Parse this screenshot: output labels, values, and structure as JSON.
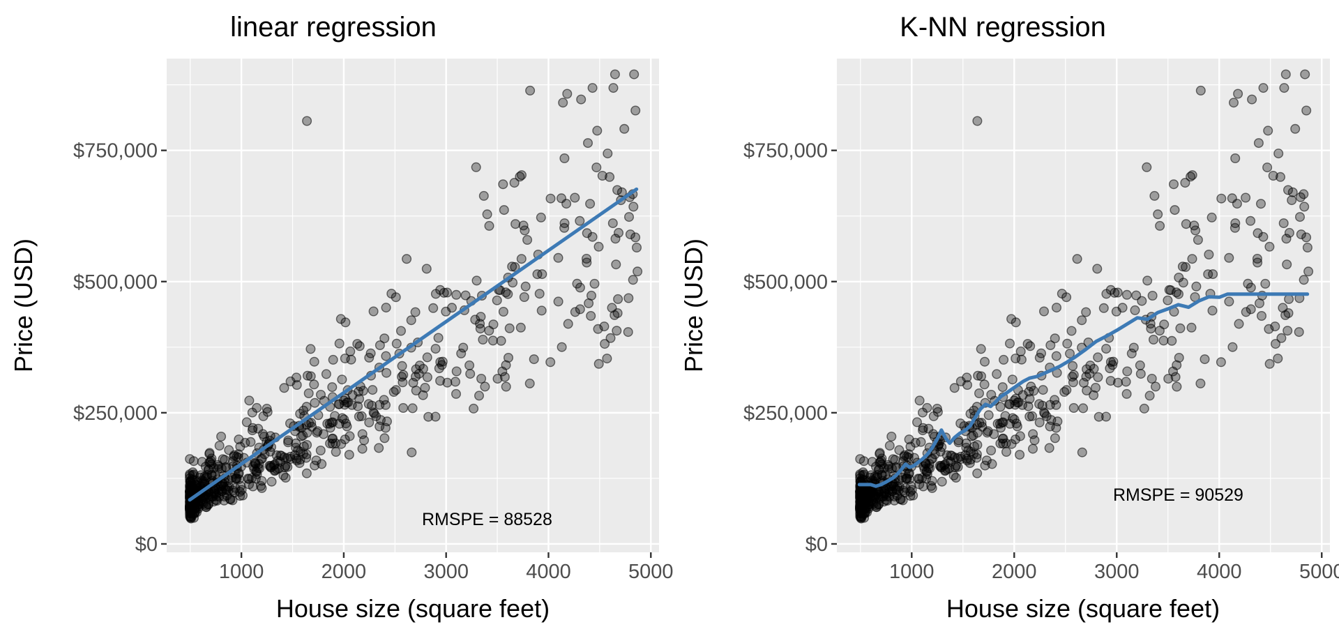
{
  "style": {
    "background": "#FFFFFF",
    "panel_background": "#EBEBEB",
    "grid_color": "#FFFFFF",
    "tick_mark_color": "#333333",
    "tick_label_color": "#4D4D4D",
    "accent_line_color": "#3D7AB5",
    "point": {
      "fill": "#000000",
      "fill_opacity": 0.33,
      "stroke_opacity": 0.55,
      "radius": 6.3,
      "stroke_width": 1.4
    }
  },
  "chart_data": [
    {
      "type": "scatter",
      "title": "linear regression",
      "xlabel": "House size (square feet)",
      "ylabel": "Price (USD)",
      "x_ticks": [
        1000,
        2000,
        3000,
        4000,
        5000
      ],
      "x_tick_labels": [
        "1000",
        "2000",
        "3000",
        "4000",
        "5000"
      ],
      "y_ticks": [
        0,
        250000,
        500000,
        750000
      ],
      "y_tick_labels": [
        "$0",
        "$250,000",
        "$500,000",
        "$750,000"
      ],
      "x_minor_step": 500,
      "y_minor_step": 125000,
      "xlim": [
        270,
        5080
      ],
      "ylim": [
        -16000,
        925000
      ],
      "grid": "major and minor, white on grey panel",
      "legend": "none",
      "annotation": {
        "text": "RMSPE = 88528",
        "x": 3400,
        "y": 48000
      },
      "fit_line": {
        "kind": "linear",
        "x": [
          495,
          4860
        ],
        "y": [
          84000,
          676000
        ]
      }
    },
    {
      "type": "scatter",
      "title": "K-NN regression",
      "xlabel": "House size (square feet)",
      "ylabel": "Price (USD)",
      "x_ticks": [
        1000,
        2000,
        3000,
        4000,
        5000
      ],
      "x_tick_labels": [
        "1000",
        "2000",
        "3000",
        "4000",
        "5000"
      ],
      "y_ticks": [
        0,
        250000,
        500000,
        750000
      ],
      "y_tick_labels": [
        "$0",
        "$250,000",
        "$500,000",
        "$750,000"
      ],
      "x_minor_step": 500,
      "y_minor_step": 125000,
      "xlim": [
        270,
        5080
      ],
      "ylim": [
        -16000,
        925000
      ],
      "grid": "major and minor, white on grey panel",
      "legend": "none",
      "annotation": {
        "text": "RMSPE = 90529",
        "x": 3600,
        "y": 94000
      },
      "fit_line": {
        "kind": "knn-step-curve",
        "points": [
          [
            490,
            113000
          ],
          [
            600,
            113000
          ],
          [
            650,
            110000
          ],
          [
            700,
            113000
          ],
          [
            760,
            119000
          ],
          [
            820,
            126000
          ],
          [
            860,
            133000
          ],
          [
            900,
            142000
          ],
          [
            940,
            152000
          ],
          [
            980,
            146000
          ],
          [
            1020,
            149000
          ],
          [
            1060,
            155000
          ],
          [
            1100,
            161000
          ],
          [
            1150,
            170000
          ],
          [
            1200,
            183000
          ],
          [
            1250,
            200000
          ],
          [
            1290,
            217000
          ],
          [
            1330,
            202000
          ],
          [
            1370,
            192000
          ],
          [
            1420,
            203000
          ],
          [
            1470,
            211000
          ],
          [
            1520,
            216000
          ],
          [
            1570,
            225000
          ],
          [
            1620,
            241000
          ],
          [
            1670,
            257000
          ],
          [
            1720,
            266000
          ],
          [
            1770,
            262000
          ],
          [
            1820,
            271000
          ],
          [
            1870,
            281000
          ],
          [
            1920,
            287000
          ],
          [
            1970,
            294000
          ],
          [
            2030,
            302000
          ],
          [
            2090,
            310000
          ],
          [
            2150,
            316000
          ],
          [
            2220,
            319000
          ],
          [
            2290,
            325000
          ],
          [
            2360,
            331000
          ],
          [
            2440,
            338000
          ],
          [
            2520,
            347000
          ],
          [
            2600,
            357000
          ],
          [
            2700,
            371000
          ],
          [
            2800,
            386000
          ],
          [
            2900,
            396000
          ],
          [
            3000,
            407000
          ],
          [
            3100,
            419000
          ],
          [
            3200,
            431000
          ],
          [
            3300,
            428000
          ],
          [
            3400,
            441000
          ],
          [
            3500,
            448000
          ],
          [
            3600,
            456000
          ],
          [
            3700,
            451000
          ],
          [
            3800,
            463000
          ],
          [
            3900,
            471000
          ],
          [
            4000,
            470000
          ],
          [
            4080,
            476000
          ],
          [
            4200,
            476000
          ],
          [
            4400,
            476000
          ],
          [
            4600,
            476000
          ],
          [
            4860,
            476000
          ]
        ]
      }
    }
  ],
  "scatter_points": {
    "note": "same house sale points drawn in both panels; dense overplotted cloud",
    "n": 660,
    "seed": 42,
    "size_min": 495,
    "size_max": 4880,
    "size_skew": 2.4,
    "price_base_k": 22,
    "price_slope_k_per_sqft": 0.118,
    "price_noise_sd": 0.3,
    "price_min_k": 42,
    "price_max_k": 895,
    "highlight_points": [
      [
        1640,
        806000
      ],
      [
        3720,
        700000
      ],
      [
        3820,
        864000
      ],
      [
        4430,
        869000
      ],
      [
        4850,
        826000
      ],
      [
        4800,
        590000
      ],
      [
        4620,
        450000
      ],
      [
        500,
        95000
      ]
    ]
  }
}
